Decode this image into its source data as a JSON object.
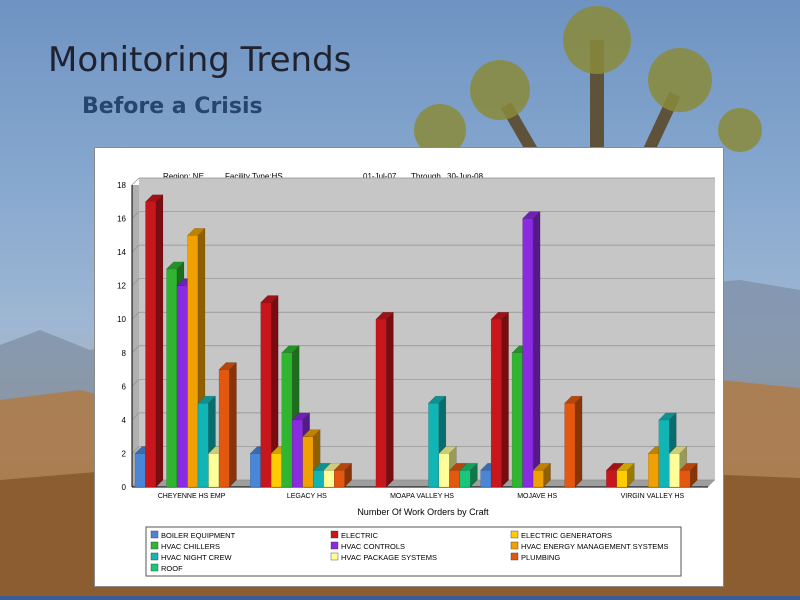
{
  "slide": {
    "title": "Monitoring Trends",
    "subtitle": "Before a Crisis"
  },
  "chart_data": {
    "type": "bar",
    "header": {
      "region": "Region: NE",
      "facility": "Facility Type:HS",
      "from": "01-Jul-07",
      "through_label": "Through",
      "to": "30-Jun-08"
    },
    "xlabel": "Number Of Work Orders by Craft",
    "ylim": [
      0,
      18
    ],
    "yticks": [
      0,
      2,
      4,
      6,
      8,
      10,
      12,
      14,
      16,
      18
    ],
    "grid": true,
    "legend_position": "bottom",
    "categories": [
      "CHEYENNE HS EMP",
      "LEGACY HS",
      "MOAPA VALLEY HS",
      "MOJAVE HS",
      "VIRGIN VALLEY HS"
    ],
    "series": [
      {
        "name": "BOILER EQUIPMENT",
        "color": "#4a86d8",
        "values": [
          2,
          2,
          0,
          1,
          0
        ]
      },
      {
        "name": "ELECTRIC",
        "color": "#c8161d",
        "values": [
          17,
          11,
          10,
          10,
          1
        ]
      },
      {
        "name": "ELECTRIC GENERATORS",
        "color": "#ffcc00",
        "values": [
          0,
          2,
          0,
          0,
          1
        ]
      },
      {
        "name": "HVAC CHILLERS",
        "color": "#2fb52f",
        "values": [
          13,
          8,
          0,
          8,
          0
        ]
      },
      {
        "name": "HVAC CONTROLS",
        "color": "#8a2be2",
        "values": [
          12,
          4,
          0,
          16,
          0
        ]
      },
      {
        "name": "HVAC ENERGY MANAGEMENT SYSTEMS",
        "color": "#f0a000",
        "values": [
          15,
          3,
          0,
          1,
          2
        ]
      },
      {
        "name": "HVAC NIGHT CREW",
        "color": "#11b5b5",
        "values": [
          5,
          1,
          5,
          0,
          4
        ]
      },
      {
        "name": "HVAC PACKAGE SYSTEMS",
        "color": "#ffff99",
        "values": [
          2,
          1,
          2,
          0,
          2
        ]
      },
      {
        "name": "PLUMBING",
        "color": "#e4570e",
        "values": [
          7,
          1,
          1,
          5,
          1
        ]
      },
      {
        "name": "ROOF",
        "color": "#19c779",
        "values": [
          0,
          0,
          1,
          0,
          0
        ]
      }
    ]
  }
}
